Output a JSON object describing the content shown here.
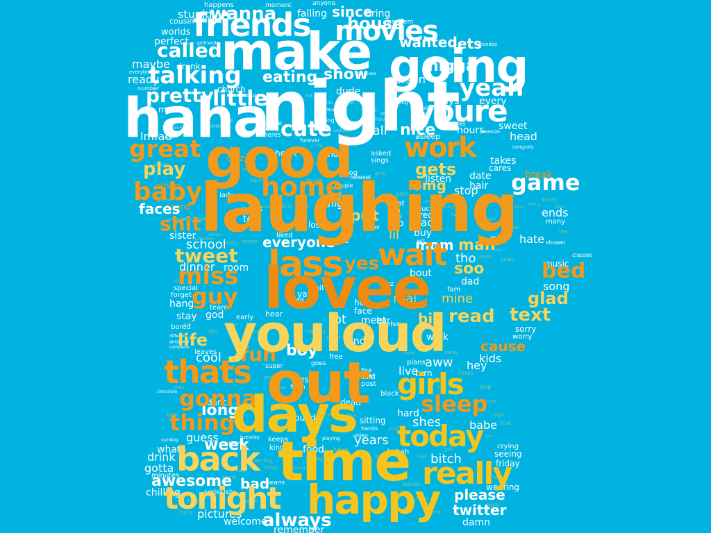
{
  "background_color": "#00b3e0",
  "palette": {
    "white": "#ffffff",
    "light_yellow": "#f8d45a",
    "yellow": "#f5c51e",
    "orange": "#f39a1b",
    "dark_orange": "#ee8c12",
    "pale_blue": "#b9e8f6"
  },
  "words": {
    "white": [
      "make",
      "night",
      "haha",
      "going",
      "friends",
      "movies",
      "house",
      "wanna",
      "called",
      "talking",
      "youre",
      "pretty",
      "little",
      "yeah",
      "cute",
      "eating",
      "show",
      "nigga",
      "lets",
      "wanted",
      "since",
      "bring",
      "stupid",
      "falling",
      "happens",
      "cousin",
      "worlds",
      "perfect",
      "maybe",
      "ready",
      "drunk",
      "months",
      "church",
      "course",
      "person",
      "dude",
      "says",
      "every",
      "sweet",
      "head",
      "lmfao",
      "nice",
      "yall",
      "asleep",
      "hours",
      "problem",
      "moment",
      "anyone",
      "everybody",
      "number",
      "cuddle",
      "killing",
      "forever",
      "drives",
      "season",
      "congrats",
      "monday",
      "girlfriends",
      "business",
      "daddy",
      "theres",
      "giving",
      "coffee",
      "literally",
      "outside",
      "brought"
    ],
    "orange": [
      "good",
      "laughing",
      "lovee",
      "home",
      "great",
      "work",
      "baby",
      "lass",
      "wait",
      "miss",
      "youloud",
      "out",
      "thats",
      "gonna",
      "shit",
      "guy",
      "fun",
      "sleep",
      "thing",
      "bed",
      "cause",
      "others",
      "sound",
      "faces",
      "dinner",
      "room",
      "mom",
      "school",
      "everyone",
      "yes",
      "boy",
      "heart",
      "crazy",
      "pic",
      "stay",
      "god",
      "cool",
      "week",
      "drink",
      "gotta",
      "awesome",
      "bad",
      "long",
      "game",
      "hate",
      "break"
    ],
    "yellow": [
      "days",
      "time",
      "back",
      "happy",
      "tonight",
      "today",
      "really",
      "girls",
      "gets",
      "omg",
      "play",
      "tweet",
      "life",
      "text",
      "glad",
      "song",
      "sorry",
      "worry",
      "kids",
      "hey",
      "aww",
      "live",
      "plans",
      "years",
      "babe",
      "shes",
      "bitch",
      "please",
      "twitter",
      "damn",
      "always",
      "pictures",
      "welcome",
      "remember",
      "guess",
      "whats",
      "minutes",
      "chilling",
      "seriously",
      "dance",
      "read",
      "big",
      "real",
      "mine",
      "meet",
      "find",
      "walk",
      "lot",
      "soo",
      "dad",
      "tho",
      "man",
      "music",
      "classes",
      "shower",
      "mind",
      "ends",
      "many",
      "takes",
      "cares",
      "date",
      "hair",
      "stop",
      "listen",
      "high",
      "true",
      "put",
      "lil",
      "job",
      "mad",
      "tired",
      "buy",
      "food",
      "hahah",
      "crying",
      "seeing",
      "friday",
      "wearing",
      "hard",
      "found",
      "sitting",
      "dead",
      "black",
      "turn",
      "bless",
      "finish",
      "goes",
      "free",
      "hell",
      "face",
      "bout",
      "stuff",
      "leaves",
      "bored",
      "hear",
      "early",
      "team",
      "hang",
      "forget",
      "special",
      "lady",
      "hit",
      "yay",
      "visit",
      "asked",
      "sings",
      "shop",
      "dog",
      "retweet",
      "couple",
      "told",
      "words",
      "lost",
      "liked",
      "sister",
      "beat",
      "ahh",
      "pass",
      "club",
      "sucks",
      "lolol",
      "wit",
      "super",
      "total",
      "fine",
      "bar",
      "else",
      "ice",
      "cuz",
      "fam",
      "post",
      "cold",
      "alright",
      "hands",
      "video",
      "keeps",
      "kinda",
      "means",
      "tuesday",
      "apparently",
      "playing",
      "sunday",
      "chocolate",
      "different",
      "gorgeous",
      "complete"
    ]
  }
}
